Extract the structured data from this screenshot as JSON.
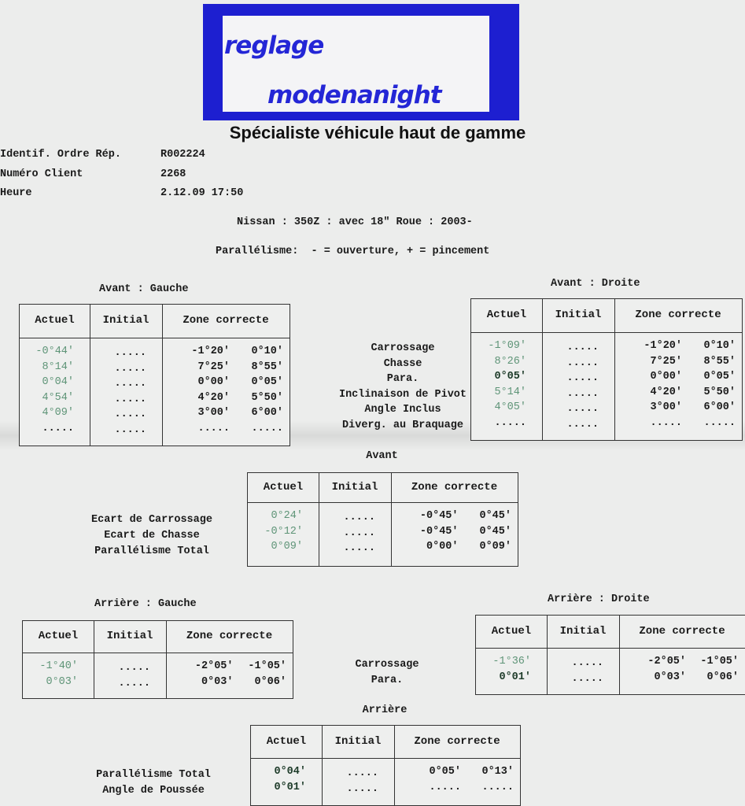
{
  "logo": {
    "line1": "reglage",
    "line2": "modenanight",
    "color": "#1d1fd0"
  },
  "title": "Spécialiste véhicule haut de gamme",
  "info": [
    {
      "label": "Identif. Ordre Rép.",
      "value": "R002224"
    },
    {
      "label": "Numéro Client",
      "value": "2268"
    },
    {
      "label": "Heure",
      "value": "2.12.09 17:50"
    }
  ],
  "vehicle": "Nissan : 350Z : avec 18\" Roue : 2003-",
  "toe_note": "Parallélisme:  - = ouverture, + = pincement",
  "columns": {
    "actuel": "Actuel",
    "initial": "Initial",
    "zone": "Zone correcte"
  },
  "status_colors": {
    "ok": "#5e9477",
    "limit": "#1c3a28"
  },
  "front_labels": [
    "Carrossage",
    "Chasse",
    "Para.",
    "Inclinaison de Pivot",
    "Angle Inclus",
    "Diverg. au Braquage"
  ],
  "front_left": {
    "heading": "Avant : Gauche",
    "rows": [
      {
        "actuel": "-0°44'",
        "status": "ok",
        "initial": ".....",
        "min": "-1°20'",
        "max": "0°10'"
      },
      {
        "actuel": "8°14'",
        "status": "ok",
        "initial": ".....",
        "min": "7°25'",
        "max": "8°55'"
      },
      {
        "actuel": "0°04'",
        "status": "ok",
        "initial": ".....",
        "min": "0°00'",
        "max": "0°05'"
      },
      {
        "actuel": "4°54'",
        "status": "ok",
        "initial": ".....",
        "min": "4°20'",
        "max": "5°50'"
      },
      {
        "actuel": "4°09'",
        "status": "ok",
        "initial": ".....",
        "min": "3°00'",
        "max": "6°00'"
      },
      {
        "actuel": ".....",
        "status": "none",
        "initial": ".....",
        "min": ".....",
        "max": "....."
      }
    ]
  },
  "front_right": {
    "heading": "Avant : Droite",
    "rows": [
      {
        "actuel": "-1°09'",
        "status": "ok",
        "initial": ".....",
        "min": "-1°20'",
        "max": "0°10'"
      },
      {
        "actuel": "8°26'",
        "status": "ok",
        "initial": ".....",
        "min": "7°25'",
        "max": "8°55'"
      },
      {
        "actuel": "0°05'",
        "status": "limit",
        "initial": ".....",
        "min": "0°00'",
        "max": "0°05'"
      },
      {
        "actuel": "5°14'",
        "status": "ok",
        "initial": ".....",
        "min": "4°20'",
        "max": "5°50'"
      },
      {
        "actuel": "4°05'",
        "status": "ok",
        "initial": ".....",
        "min": "3°00'",
        "max": "6°00'"
      },
      {
        "actuel": ".....",
        "status": "none",
        "initial": ".....",
        "min": ".....",
        "max": "....."
      }
    ]
  },
  "front_axle": {
    "heading": "Avant",
    "labels": [
      "Ecart de Carrossage",
      "Ecart de Chasse",
      "Parallélisme Total"
    ],
    "rows": [
      {
        "actuel": "0°24'",
        "status": "ok",
        "initial": ".....",
        "min": "-0°45'",
        "max": "0°45'"
      },
      {
        "actuel": "-0°12'",
        "status": "ok",
        "initial": ".....",
        "min": "-0°45'",
        "max": "0°45'"
      },
      {
        "actuel": "0°09'",
        "status": "ok",
        "initial": ".....",
        "min": "0°00'",
        "max": "0°09'"
      }
    ]
  },
  "rear_labels": [
    "Carrossage",
    "Para."
  ],
  "rear_left": {
    "heading": "Arrière : Gauche",
    "rows": [
      {
        "actuel": "-1°40'",
        "status": "ok",
        "initial": ".....",
        "min": "-2°05'",
        "max": "-1°05'"
      },
      {
        "actuel": "0°03'",
        "status": "ok",
        "initial": ".....",
        "min": "0°03'",
        "max": "0°06'"
      }
    ]
  },
  "rear_right": {
    "heading": "Arrière : Droite",
    "rows": [
      {
        "actuel": "-1°36'",
        "status": "ok",
        "initial": ".....",
        "min": "-2°05'",
        "max": "-1°05'"
      },
      {
        "actuel": "0°01'",
        "status": "limit",
        "initial": ".....",
        "min": "0°03'",
        "max": "0°06'"
      }
    ]
  },
  "rear_axle": {
    "heading": "Arrière",
    "labels": [
      "Parallélisme Total",
      "Angle de Poussée"
    ],
    "rows": [
      {
        "actuel": "0°04'",
        "status": "limit",
        "initial": ".....",
        "min": "0°05'",
        "max": "0°13'"
      },
      {
        "actuel": "0°01'",
        "status": "limit",
        "initial": ".....",
        "min": ".....",
        "max": "....."
      }
    ]
  }
}
